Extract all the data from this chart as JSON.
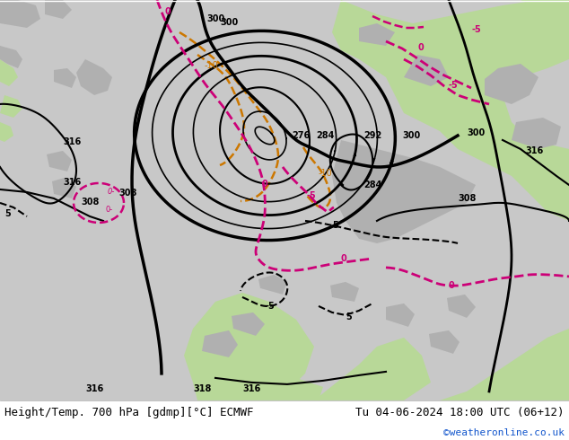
{
  "title_left": "Height/Temp. 700 hPa [gdmp][°C] ECMWF",
  "title_right": "Tu 04-06-2024 18:00 UTC (06+12)",
  "credit": "©weatheronline.co.uk",
  "fig_width": 6.34,
  "fig_height": 4.9,
  "dpi": 100,
  "bg_color": "#c8c8c8",
  "land_green": "#b8d898",
  "land_gray": "#b0b0b0",
  "bottom_bar_color": "#f0f0f0",
  "title_fontsize": 9,
  "credit_fontsize": 8,
  "credit_color": "#1155cc",
  "black_lw": 1.5,
  "black_lw_bold": 2.5,
  "orange_color": "#cc7700",
  "magenta_color": "#cc0077"
}
